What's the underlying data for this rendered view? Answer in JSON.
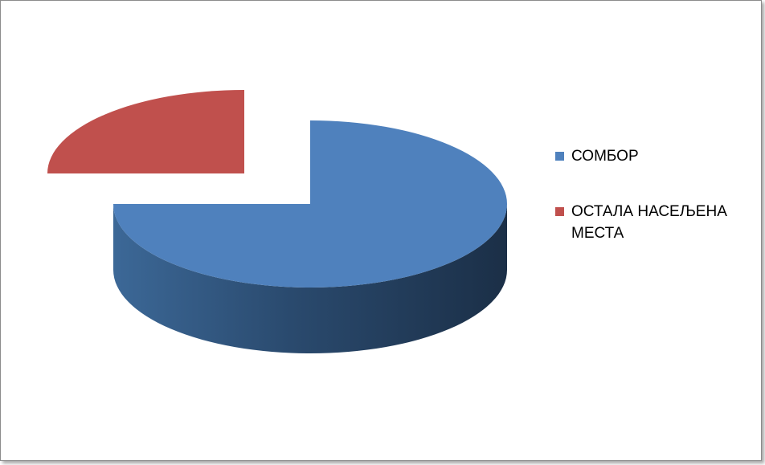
{
  "chart_data": {
    "type": "pie",
    "style": "3d-exploded",
    "title": "",
    "slices": [
      {
        "name": "СОМБОР",
        "value": 75,
        "color": "#4f81bd"
      },
      {
        "name": "ОСТАЛА НАСЕЉЕНА МЕСТА",
        "value": 25,
        "color": "#c0504d"
      }
    ],
    "legend_position": "right"
  },
  "legend": {
    "items": [
      {
        "label": "СОМБОР",
        "color": "#4f81bd"
      },
      {
        "label": "ОСТАЛА НАСЕЉЕНА МЕСТА",
        "color": "#c0504d"
      }
    ]
  }
}
